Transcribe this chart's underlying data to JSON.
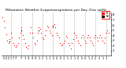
{
  "title": "Milwaukee Weather Evapotranspiration per Day (Ozs sq/ft)",
  "title_fontsize": 3.2,
  "background_color": "#ffffff",
  "plot_bg_color": "#ffffff",
  "grid_color": "#aaaaaa",
  "ylim": [
    0,
    8.5
  ],
  "yticks": [
    1,
    2,
    3,
    4,
    5,
    6,
    7,
    8
  ],
  "ylabel_fontsize": 2.8,
  "xlabel_fontsize": 2.5,
  "red_color": "#ff0000",
  "black_color": "#000000",
  "x_values": [
    0,
    1,
    2,
    3,
    4,
    5,
    6,
    7,
    8,
    9,
    10,
    11,
    12,
    13,
    14,
    15,
    16,
    17,
    18,
    19,
    20,
    21,
    22,
    23,
    24,
    25,
    26,
    27,
    28,
    29,
    30,
    31,
    32,
    33,
    34,
    35,
    36,
    37,
    38,
    39,
    40,
    41,
    42,
    43,
    44,
    45,
    46,
    47,
    48,
    49,
    50,
    51,
    52,
    53,
    54,
    55,
    56,
    57,
    58,
    59,
    60,
    61,
    62,
    63,
    64,
    65,
    66,
    67,
    68,
    69,
    70,
    71,
    72,
    73,
    74,
    75,
    76,
    77,
    78,
    79,
    80,
    81,
    82,
    83,
    84,
    85,
    86,
    87,
    88,
    89,
    90
  ],
  "red_y": [
    7.5,
    6.8,
    5.5,
    4.2,
    3.0,
    2.5,
    3.2,
    4.5,
    3.5,
    2.5,
    2.0,
    1.8,
    2.0,
    2.5,
    3.5,
    4.5,
    5.5,
    4.0,
    3.2,
    2.5,
    1.8,
    1.5,
    2.0,
    4.5,
    5.5,
    4.5,
    3.5,
    2.5,
    2.2,
    3.0,
    4.5,
    5.5,
    5.2,
    4.5,
    3.5,
    3.2,
    4.0,
    5.0,
    5.8,
    5.5,
    5.0,
    4.5,
    4.0,
    5.5,
    6.2,
    5.5,
    4.5,
    4.0,
    3.5,
    2.5,
    2.0,
    2.2,
    2.5,
    3.0,
    3.8,
    3.5,
    2.5,
    2.0,
    1.5,
    2.5,
    3.2,
    4.5,
    4.0,
    3.5,
    3.0,
    2.5,
    2.0,
    3.5,
    4.0,
    3.5,
    3.0,
    2.5,
    3.5,
    4.0,
    3.5,
    3.0,
    2.5,
    2.0,
    3.5,
    4.0,
    3.5,
    3.0,
    3.5,
    4.0,
    3.5,
    3.0,
    2.5,
    3.5,
    4.5,
    5.0,
    4.5
  ],
  "black_y": [
    null,
    null,
    null,
    null,
    null,
    null,
    2.8,
    null,
    null,
    null,
    null,
    null,
    null,
    null,
    null,
    null,
    5.0,
    null,
    null,
    null,
    null,
    null,
    null,
    null,
    null,
    null,
    null,
    null,
    null,
    null,
    null,
    5.0,
    null,
    null,
    null,
    null,
    null,
    null,
    null,
    null,
    null,
    null,
    null,
    null,
    null,
    null,
    null,
    null,
    null,
    null,
    null,
    null,
    null,
    null,
    null,
    null,
    null,
    null,
    null,
    null,
    null,
    null,
    null,
    null,
    null,
    null,
    null,
    null,
    null,
    null,
    null,
    null,
    null,
    null,
    null,
    null,
    null,
    null,
    null,
    null,
    null,
    null,
    null,
    null,
    null,
    null,
    null,
    null,
    null,
    null,
    null
  ],
  "black_scatter_x": [
    6,
    16,
    31,
    43
  ],
  "black_scatter_y": [
    2.8,
    5.0,
    5.0,
    5.8
  ],
  "vline_positions": [
    7,
    16,
    25,
    34,
    43,
    52,
    61,
    70,
    79,
    88
  ],
  "x_tick_positions": [
    1,
    3,
    5,
    7,
    9,
    11,
    16,
    19,
    22,
    25,
    28,
    31,
    34,
    37,
    40,
    43,
    46,
    49,
    52,
    55,
    58,
    61,
    64,
    67,
    70,
    73,
    76,
    79,
    82,
    85,
    88
  ],
  "x_tick_labels": [
    "5",
    "5",
    "5",
    "1",
    "7",
    "7",
    "7",
    "1",
    "9",
    "9",
    "9",
    "1",
    "1",
    "1",
    "1",
    "5",
    "5",
    "5",
    "1",
    "1",
    "1",
    "1",
    "5",
    "5",
    "5",
    "1",
    "2",
    "2",
    "2",
    "1",
    "1"
  ]
}
